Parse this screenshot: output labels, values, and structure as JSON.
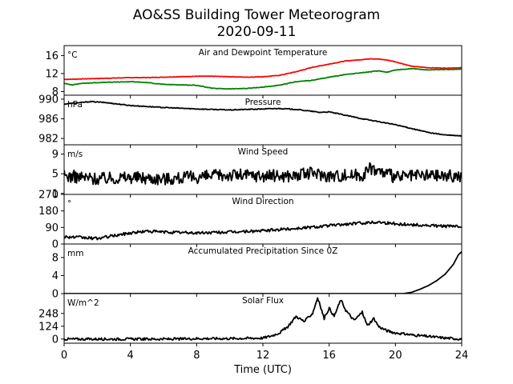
{
  "title": "AO&SS Building Tower Meteorogram",
  "subtitle": "2020-09-11",
  "chart_data": {
    "type": "line",
    "xlabel": "Time (UTC)",
    "xlim": [
      0,
      24
    ],
    "xticks": [
      0,
      4,
      8,
      12,
      16,
      20,
      24
    ],
    "xtick_labels": [
      "0",
      "4",
      "8",
      "12",
      "16",
      "20",
      "24"
    ],
    "grid": false,
    "panels": [
      {
        "title": "Air and Dewpoint Temperature",
        "unit": "°C",
        "ylim": [
          7.2,
          18.2
        ],
        "yticks": [
          8,
          12,
          16
        ],
        "ytick_labels": [
          "8",
          "12",
          "16"
        ],
        "series": [
          {
            "color": "#ff0000",
            "x": [
              0,
              1,
              2,
              3,
              4,
              5,
              6,
              7,
              8,
              9,
              10,
              11,
              12,
              13,
              14,
              15,
              16,
              17,
              18,
              18.5,
              19,
              19.5,
              20,
              21,
              22,
              23,
              24
            ],
            "y": [
              10.7,
              10.8,
              10.9,
              11.0,
              11.1,
              11.1,
              11.2,
              11.3,
              11.4,
              11.4,
              11.3,
              11.2,
              11.3,
              11.6,
              12.4,
              13.4,
              14.1,
              14.8,
              15.1,
              15.3,
              15.2,
              15.0,
              14.6,
              13.6,
              13.3,
              13.2,
              13.3
            ],
            "noise": 0.05
          },
          {
            "color": "#008000",
            "x": [
              0,
              0.5,
              1,
              2,
              3,
              4,
              5,
              6,
              7,
              8,
              9,
              10,
              11,
              12,
              13,
              14,
              15,
              16,
              17,
              18,
              19,
              19.5,
              20,
              21,
              22,
              23,
              24
            ],
            "y": [
              9.8,
              9.5,
              9.8,
              10.0,
              10.1,
              10.2,
              10.0,
              9.6,
              9.5,
              9.4,
              8.7,
              8.6,
              8.7,
              9.0,
              9.4,
              10.2,
              10.5,
              11.2,
              11.8,
              12.2,
              12.6,
              12.3,
              12.8,
              13.1,
              12.8,
              12.9,
              13.0
            ],
            "noise": 0.06
          }
        ]
      },
      {
        "title": "Pressure",
        "unit": "hPa",
        "ylim": [
          980.7,
          990.8
        ],
        "yticks": [
          982,
          986,
          990
        ],
        "ytick_labels": [
          "982",
          "986",
          "990"
        ],
        "series": [
          {
            "color": "#000000",
            "x": [
              0,
              1,
              1.6,
              2.5,
              4,
              6,
              8,
              10,
              12,
              13,
              14,
              15,
              15.4,
              16,
              17,
              18,
              19,
              20,
              21,
              22,
              23,
              24
            ],
            "y": [
              989.0,
              989.3,
              989.5,
              989.3,
              988.7,
              988.3,
              988.0,
              987.8,
              988.0,
              988.1,
              987.9,
              987.5,
              987.3,
              987.4,
              986.7,
              986.0,
              985.4,
              984.8,
              984.0,
              983.2,
              982.7,
              982.5
            ],
            "noise": 0.08
          }
        ]
      },
      {
        "title": "Wind Speed",
        "unit": "m/s",
        "ylim": [
          0.8,
          10.9
        ],
        "yticks": [
          1,
          5,
          9
        ],
        "ytick_labels": [
          "1",
          "5",
          "9"
        ],
        "series": [
          {
            "color": "#000000",
            "x": [
              0,
              2,
              4,
              6,
              8,
              10,
              12,
              14,
              15,
              16,
              18,
              18.5,
              20,
              22,
              24
            ],
            "y": [
              4.6,
              4.0,
              4.3,
              4.0,
              4.3,
              4.8,
              4.6,
              4.6,
              5.2,
              4.6,
              4.8,
              6.2,
              4.3,
              4.7,
              4.5
            ],
            "noise": 1.3
          }
        ]
      },
      {
        "title": "Wind Direction",
        "unit": "°",
        "ylim": [
          0,
          270
        ],
        "yticks": [
          0,
          90,
          180,
          270
        ],
        "ytick_labels": [
          "0",
          "90",
          "180",
          "270"
        ],
        "series": [
          {
            "color": "#000000",
            "x": [
              0,
              1,
              2,
              3,
              4,
              5,
              6,
              8,
              10,
              12,
              14,
              16,
              18,
              19,
              20,
              22,
              24
            ],
            "y": [
              40,
              35,
              30,
              45,
              60,
              70,
              65,
              60,
              65,
              72,
              85,
              100,
              115,
              120,
              110,
              100,
              95
            ],
            "noise": 8
          }
        ]
      },
      {
        "title": "Accumulated Precipitation Since 0Z",
        "unit": "mm",
        "ylim": [
          0,
          11
        ],
        "yticks": [
          0,
          4,
          8
        ],
        "ytick_labels": [
          "0",
          "4",
          "8"
        ],
        "series": [
          {
            "color": "#000000",
            "x": [
              0,
              20.5,
              21,
              21.5,
              22,
              22.5,
              23,
              23.5,
              23.8,
              24
            ],
            "y": [
              0,
              0,
              0.3,
              1.0,
              1.8,
              2.9,
              4.3,
              6.5,
              8.6,
              9.3
            ],
            "noise": 0
          }
        ]
      },
      {
        "title": "Solar Flux",
        "unit": "W/m^2",
        "ylim": [
          -40,
          440
        ],
        "yticks": [
          0,
          124,
          248
        ],
        "ytick_labels": [
          "0",
          "124",
          "248"
        ],
        "series": [
          {
            "color": "#000000",
            "x": [
              0,
              7,
              8,
              10,
              12,
              12.5,
              13,
              13.5,
              14,
              14.5,
              15,
              15.3,
              15.7,
              16,
              16.3,
              16.7,
              17,
              17.5,
              18,
              18.3,
              18.7,
              19,
              19.5,
              20,
              21,
              22,
              23,
              24
            ],
            "y": [
              0,
              0,
              5,
              5,
              10,
              30,
              60,
              120,
              220,
              170,
              250,
              400,
              200,
              300,
              220,
              380,
              280,
              180,
              260,
              130,
              200,
              120,
              80,
              60,
              40,
              25,
              10,
              0
            ],
            "noise": 12
          }
        ]
      }
    ]
  }
}
